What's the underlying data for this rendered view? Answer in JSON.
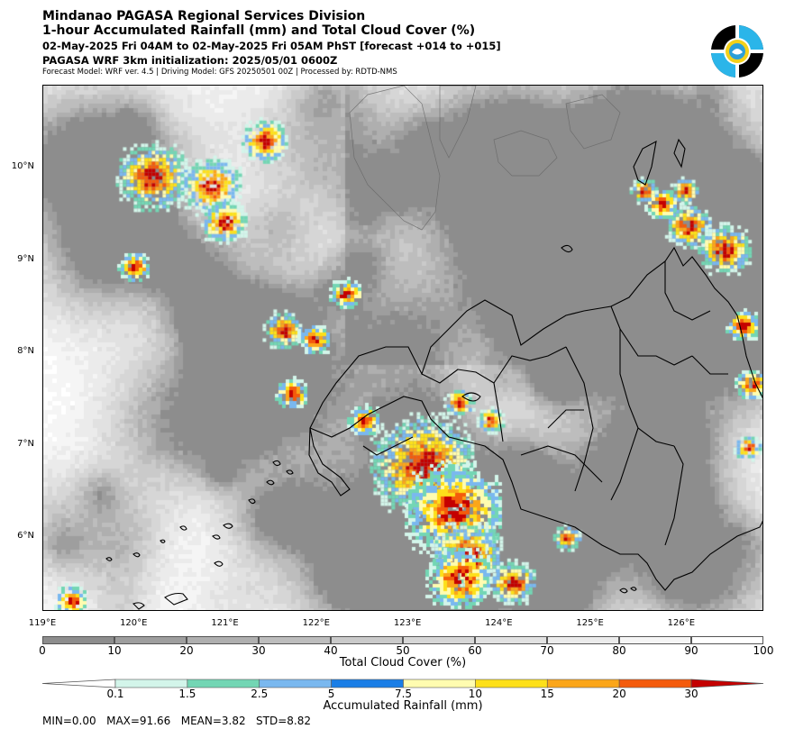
{
  "header": {
    "line1": "Mindanao PAGASA Regional Services Division",
    "line2": "1-hour Accumulated Rainfall (mm) and Total Cloud Cover (%)",
    "line3": "02-May-2025 Fri 04AM to 02-May-2025 Fri 05AM PhST [forecast +014 to +015]",
    "line4": "PAGASA WRF 3km initialization: 2025/05/01 0600Z",
    "line5": "Forecast Model: WRF ver. 4.5 | Driving Model: GFS 20250501 00Z | Processed by: RDTD-NMS"
  },
  "logo": {
    "name": "PAGASA",
    "icon": "pagasa-seal-icon"
  },
  "map": {
    "lat_labels": [
      "10°N",
      "9°N",
      "8°N",
      "7°N",
      "6°N"
    ],
    "lon_labels": [
      "119°E",
      "120°E",
      "121°E",
      "122°E",
      "123°E",
      "124°E",
      "125°E",
      "126°E"
    ],
    "lon_range": [
      119,
      126.9
    ],
    "lat_range": [
      5.2,
      10.9
    ]
  },
  "cloud_colorbar": {
    "label": "Total Cloud Cover (%)",
    "ticks": [
      "0",
      "10",
      "20",
      "30",
      "40",
      "50",
      "60",
      "70",
      "80",
      "90",
      "100"
    ],
    "colors": [
      "#8d8d8d",
      "#9e9e9e",
      "#afafaf",
      "#bdbdbd",
      "#cacaca",
      "#d6d6d6",
      "#e1e1e1",
      "#ebebeb",
      "#f5f5f5",
      "#ffffff"
    ]
  },
  "rain_colorbar": {
    "label": "Accumulated Rainfall (mm)",
    "ticks": [
      "0.1",
      "1.5",
      "2.5",
      "5",
      "7.5",
      "10",
      "15",
      "20",
      "30"
    ],
    "colors": [
      "#ffffff",
      "#d3f5ea",
      "#73d6b4",
      "#7ab8ef",
      "#1a7ee6",
      "#fffcb0",
      "#fde01a",
      "#fba61a",
      "#f45b0c",
      "#c40000"
    ]
  },
  "stats": {
    "text": "MIN=0.00   MAX=91.66   MEAN=3.82   STD=8.82"
  }
}
